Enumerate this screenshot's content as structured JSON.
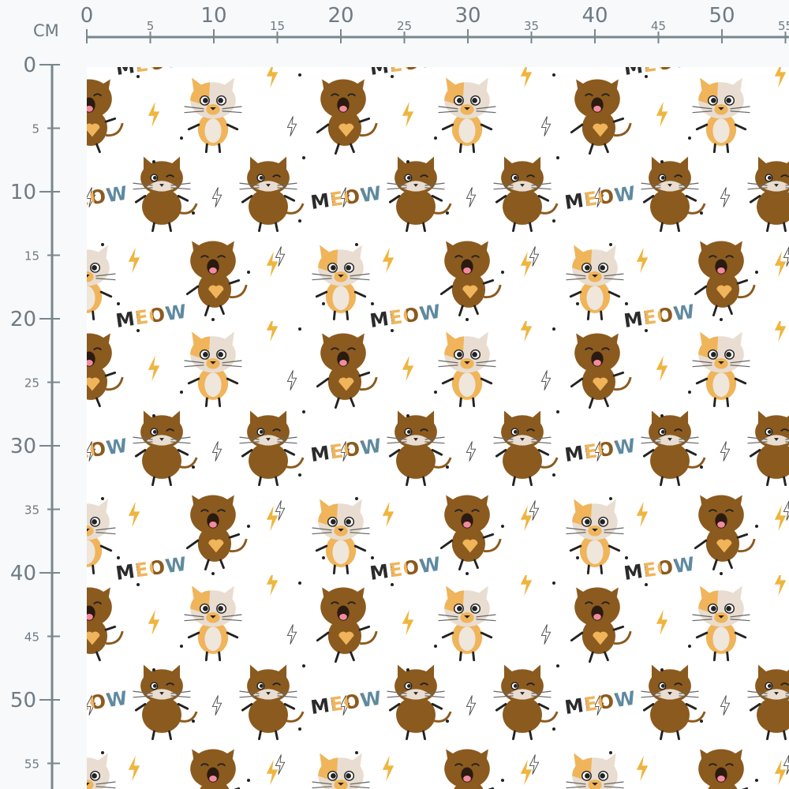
{
  "ruler": {
    "unit": "CM",
    "top_labels": [
      "0",
      "5",
      "10",
      "15",
      "20",
      "25",
      "30",
      "35",
      "40",
      "45",
      "50",
      "55"
    ],
    "left_labels": [
      "0",
      "5",
      "10",
      "15",
      "20",
      "25",
      "30",
      "35",
      "40",
      "45",
      "50",
      "55"
    ],
    "color": "#6f7a82"
  },
  "fabric": {
    "motif_text": "MEOW",
    "colors": {
      "background": "#ffffff",
      "brown": "#8b5a1e",
      "orange": "#f0b45a",
      "cream": "#e8ddd0",
      "yellow": "#eeb53f",
      "slate_blue": "#5f8aa0",
      "dark": "#2b2b2b"
    }
  }
}
